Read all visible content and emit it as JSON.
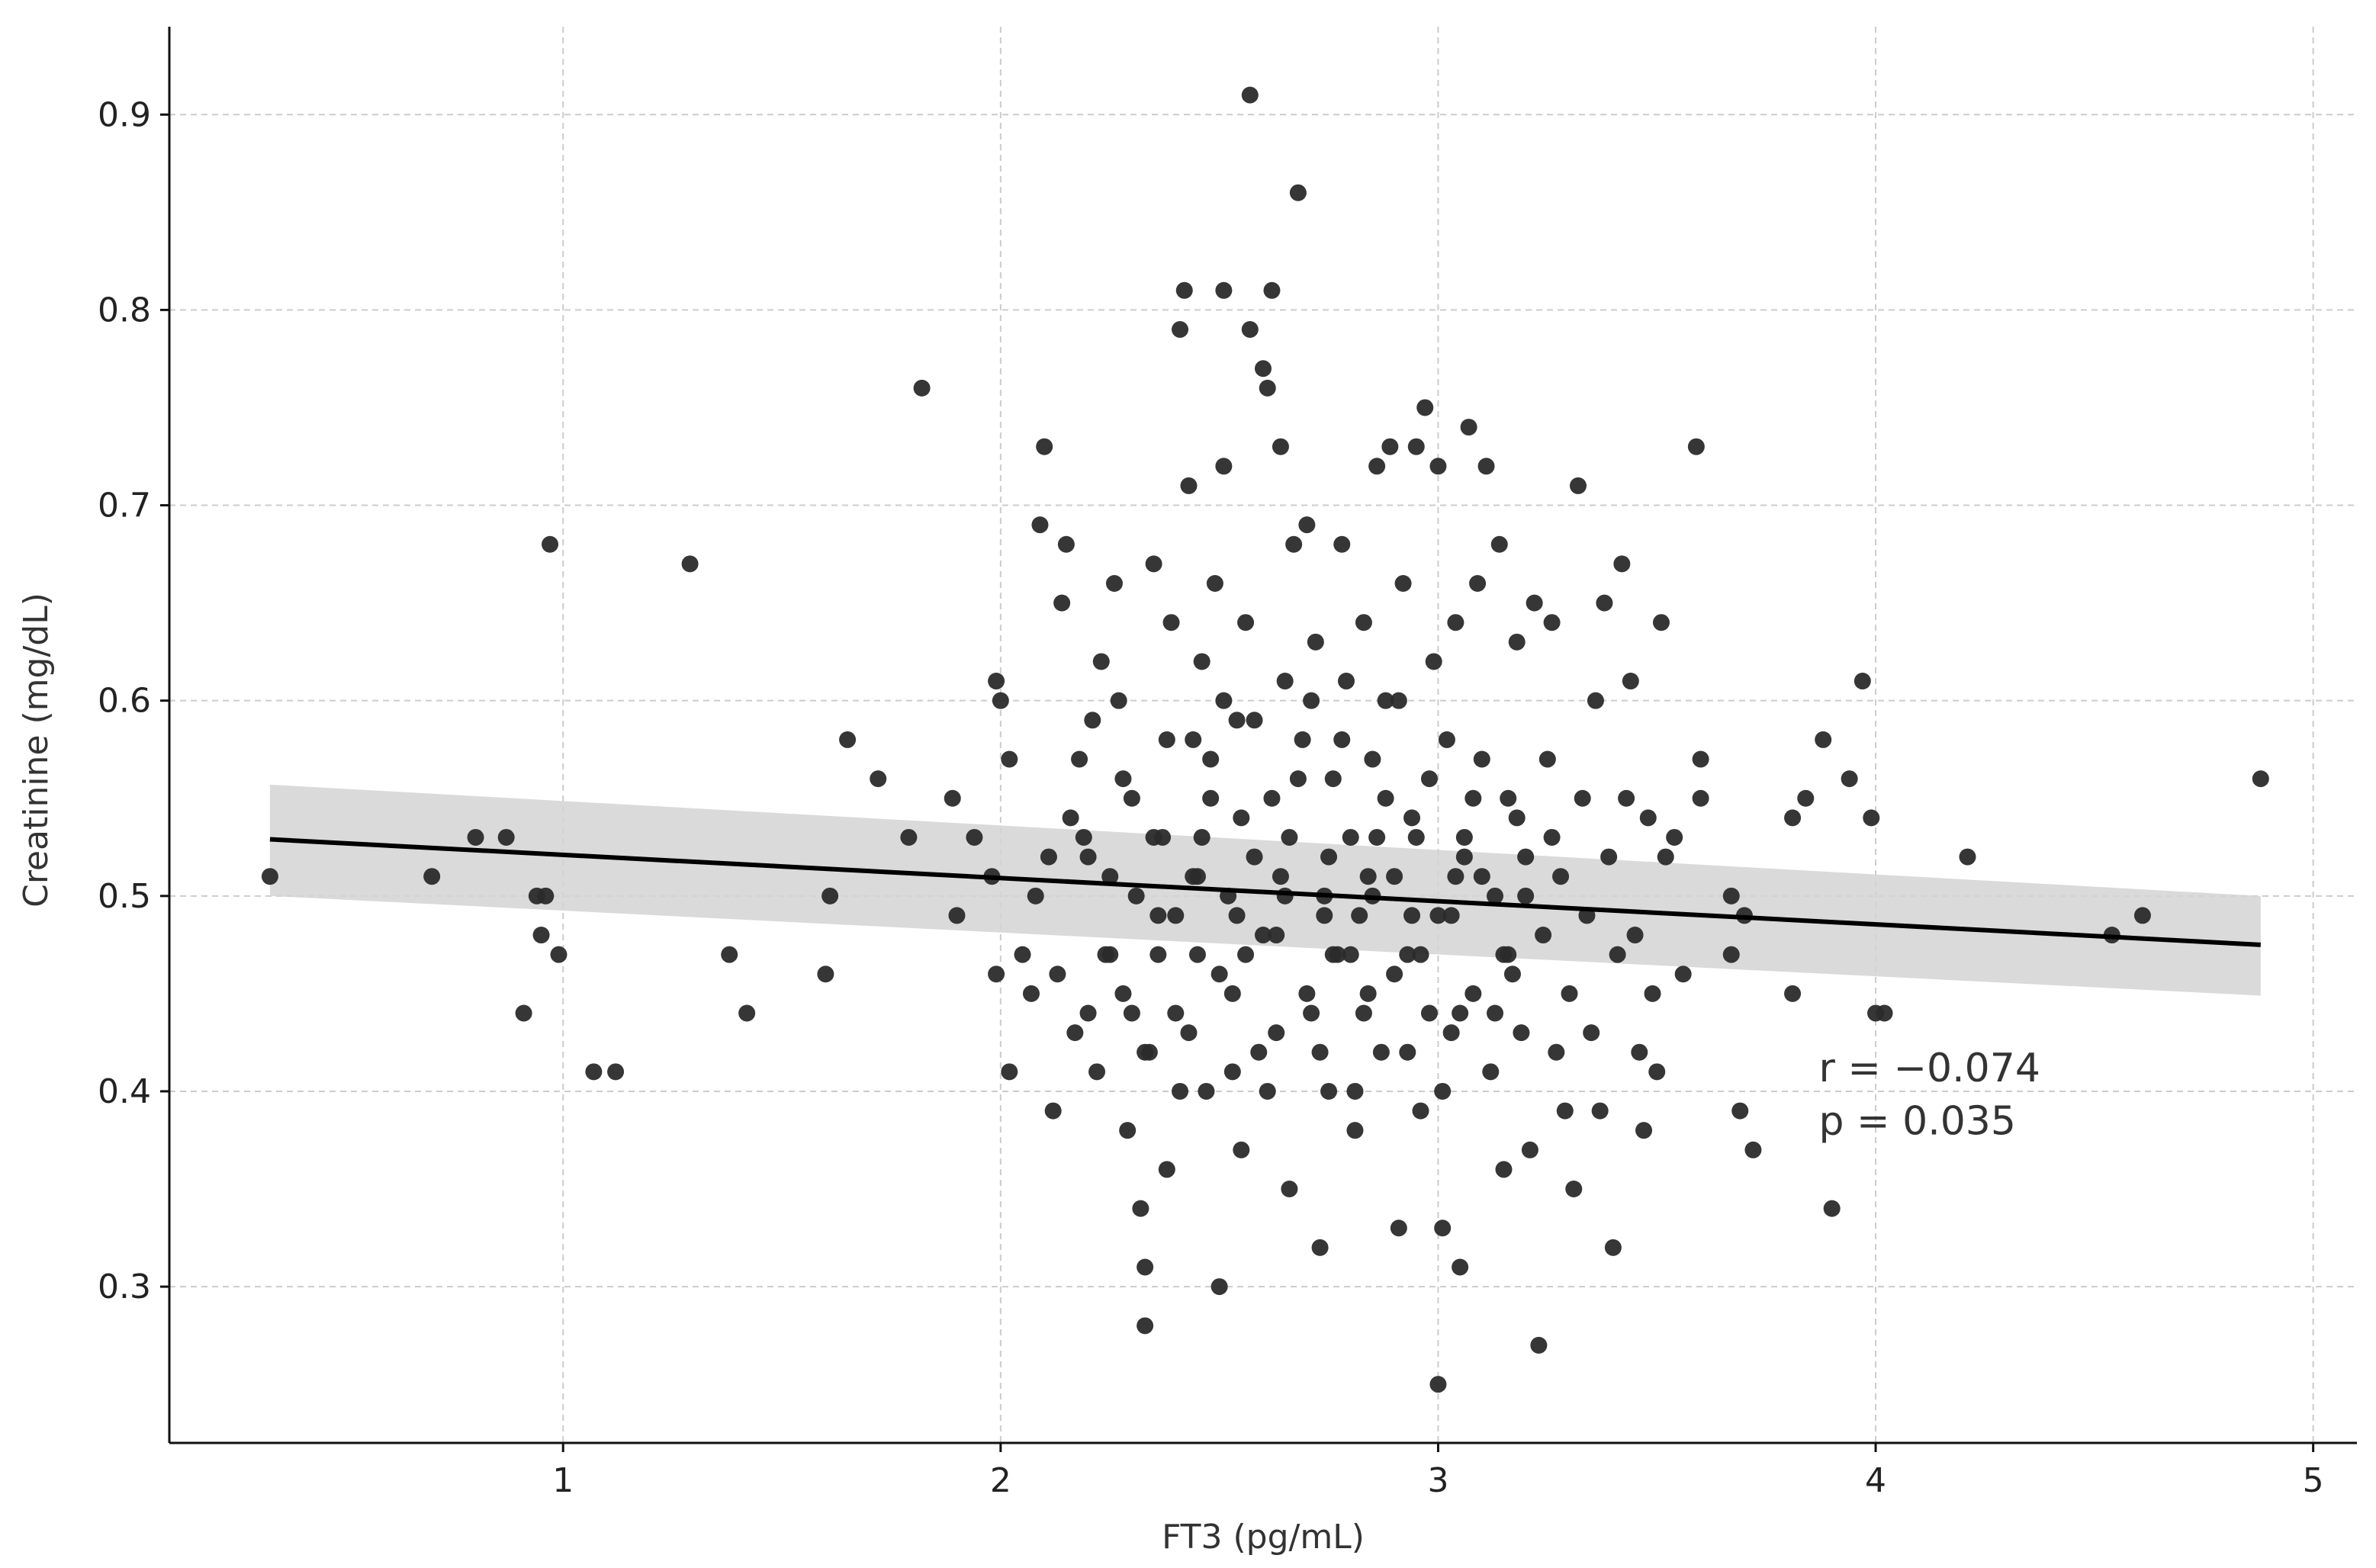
{
  "chart_data": {
    "type": "scatter",
    "title": "",
    "xlabel": "FT3 (pg/mL)",
    "ylabel": "Creatinine (mg/dL)",
    "xlim": [
      0.1,
      5.1
    ],
    "ylim": [
      0.22,
      0.945
    ],
    "xticks": [
      1,
      2,
      3,
      4,
      5
    ],
    "yticks": [
      0.3,
      0.4,
      0.5,
      0.6,
      0.7,
      0.8,
      0.9
    ],
    "grid": true,
    "point_color": "#2b2b2b",
    "line_color": "#000000",
    "band_color": "#d3d3d3",
    "annotations": [
      {
        "label": "r = −0.074",
        "x": 3.87,
        "y": 0.405
      },
      {
        "label": "p = 0.035",
        "x": 3.87,
        "y": 0.378
      }
    ],
    "regression": {
      "x": [
        0.33,
        4.88
      ],
      "y": [
        0.529,
        0.475
      ],
      "ci_upper": [
        0.557,
        0.5
      ],
      "ci_lower": [
        0.5,
        0.449
      ]
    },
    "points": [
      [
        0.33,
        0.51
      ],
      [
        0.7,
        0.51
      ],
      [
        0.8,
        0.53
      ],
      [
        0.87,
        0.53
      ],
      [
        0.91,
        0.44
      ],
      [
        0.94,
        0.5
      ],
      [
        0.96,
        0.5
      ],
      [
        0.95,
        0.48
      ],
      [
        0.97,
        0.68
      ],
      [
        0.99,
        0.47
      ],
      [
        1.07,
        0.41
      ],
      [
        1.12,
        0.41
      ],
      [
        1.29,
        0.67
      ],
      [
        1.38,
        0.47
      ],
      [
        1.42,
        0.44
      ],
      [
        1.6,
        0.46
      ],
      [
        1.61,
        0.5
      ],
      [
        1.65,
        0.58
      ],
      [
        1.72,
        0.56
      ],
      [
        1.79,
        0.53
      ],
      [
        1.82,
        0.76
      ],
      [
        1.89,
        0.55
      ],
      [
        1.9,
        0.49
      ],
      [
        1.94,
        0.53
      ],
      [
        1.98,
        0.51
      ],
      [
        1.99,
        0.61
      ],
      [
        2.0,
        0.6
      ],
      [
        2.02,
        0.57
      ],
      [
        2.02,
        0.41
      ],
      [
        1.99,
        0.46
      ],
      [
        2.05,
        0.47
      ],
      [
        2.07,
        0.45
      ],
      [
        2.08,
        0.5
      ],
      [
        2.09,
        0.69
      ],
      [
        2.1,
        0.73
      ],
      [
        2.11,
        0.52
      ],
      [
        2.12,
        0.39
      ],
      [
        2.13,
        0.46
      ],
      [
        2.14,
        0.65
      ],
      [
        2.15,
        0.68
      ],
      [
        2.16,
        0.54
      ],
      [
        2.17,
        0.43
      ],
      [
        2.18,
        0.57
      ],
      [
        2.19,
        0.53
      ],
      [
        2.2,
        0.44
      ],
      [
        2.21,
        0.59
      ],
      [
        2.22,
        0.41
      ],
      [
        2.23,
        0.62
      ],
      [
        2.24,
        0.47
      ],
      [
        2.25,
        0.51
      ],
      [
        2.26,
        0.66
      ],
      [
        2.27,
        0.6
      ],
      [
        2.28,
        0.45
      ],
      [
        2.29,
        0.38
      ],
      [
        2.3,
        0.55
      ],
      [
        2.31,
        0.5
      ],
      [
        2.32,
        0.34
      ],
      [
        2.33,
        0.28
      ],
      [
        2.33,
        0.31
      ],
      [
        2.34,
        0.42
      ],
      [
        2.35,
        0.67
      ],
      [
        2.36,
        0.49
      ],
      [
        2.37,
        0.53
      ],
      [
        2.38,
        0.36
      ],
      [
        2.39,
        0.64
      ],
      [
        2.4,
        0.44
      ],
      [
        2.41,
        0.79
      ],
      [
        2.42,
        0.81
      ],
      [
        2.43,
        0.71
      ],
      [
        2.44,
        0.58
      ],
      [
        2.45,
        0.47
      ],
      [
        2.46,
        0.62
      ],
      [
        2.47,
        0.4
      ],
      [
        2.48,
        0.55
      ],
      [
        2.49,
        0.66
      ],
      [
        2.5,
        0.3
      ],
      [
        2.51,
        0.81
      ],
      [
        2.51,
        0.72
      ],
      [
        2.52,
        0.5
      ],
      [
        2.53,
        0.45
      ],
      [
        2.54,
        0.59
      ],
      [
        2.55,
        0.37
      ],
      [
        2.56,
        0.64
      ],
      [
        2.57,
        0.79
      ],
      [
        2.57,
        0.91
      ],
      [
        2.58,
        0.52
      ],
      [
        2.59,
        0.42
      ],
      [
        2.6,
        0.77
      ],
      [
        2.61,
        0.76
      ],
      [
        2.62,
        0.81
      ],
      [
        2.62,
        0.55
      ],
      [
        2.63,
        0.48
      ],
      [
        2.64,
        0.73
      ],
      [
        2.65,
        0.61
      ],
      [
        2.66,
        0.35
      ],
      [
        2.67,
        0.68
      ],
      [
        2.68,
        0.86
      ],
      [
        2.69,
        0.58
      ],
      [
        2.7,
        0.69
      ],
      [
        2.71,
        0.44
      ],
      [
        2.72,
        0.63
      ],
      [
        2.73,
        0.32
      ],
      [
        2.74,
        0.5
      ],
      [
        2.75,
        0.4
      ],
      [
        2.76,
        0.56
      ],
      [
        2.77,
        0.47
      ],
      [
        2.78,
        0.68
      ],
      [
        2.79,
        0.61
      ],
      [
        2.8,
        0.53
      ],
      [
        2.81,
        0.38
      ],
      [
        2.82,
        0.49
      ],
      [
        2.83,
        0.64
      ],
      [
        2.84,
        0.45
      ],
      [
        2.85,
        0.57
      ],
      [
        2.86,
        0.72
      ],
      [
        2.87,
        0.42
      ],
      [
        2.88,
        0.6
      ],
      [
        2.89,
        0.73
      ],
      [
        2.9,
        0.51
      ],
      [
        2.91,
        0.33
      ],
      [
        2.92,
        0.66
      ],
      [
        2.93,
        0.47
      ],
      [
        2.94,
        0.54
      ],
      [
        2.95,
        0.73
      ],
      [
        2.96,
        0.39
      ],
      [
        2.97,
        0.75
      ],
      [
        2.98,
        0.44
      ],
      [
        2.99,
        0.62
      ],
      [
        3.0,
        0.72
      ],
      [
        3.01,
        0.33
      ],
      [
        3.0,
        0.25
      ],
      [
        3.02,
        0.58
      ],
      [
        3.03,
        0.49
      ],
      [
        3.04,
        0.64
      ],
      [
        3.05,
        0.31
      ],
      [
        3.06,
        0.52
      ],
      [
        3.07,
        0.74
      ],
      [
        3.08,
        0.45
      ],
      [
        3.09,
        0.66
      ],
      [
        3.1,
        0.57
      ],
      [
        3.11,
        0.72
      ],
      [
        3.12,
        0.41
      ],
      [
        3.13,
        0.5
      ],
      [
        3.14,
        0.68
      ],
      [
        3.15,
        0.36
      ],
      [
        3.16,
        0.55
      ],
      [
        3.17,
        0.46
      ],
      [
        3.18,
        0.63
      ],
      [
        3.19,
        0.43
      ],
      [
        3.2,
        0.52
      ],
      [
        3.21,
        0.37
      ],
      [
        3.22,
        0.65
      ],
      [
        3.23,
        0.27
      ],
      [
        3.24,
        0.48
      ],
      [
        3.25,
        0.57
      ],
      [
        3.26,
        0.64
      ],
      [
        3.27,
        0.42
      ],
      [
        3.28,
        0.51
      ],
      [
        3.29,
        0.39
      ],
      [
        3.3,
        0.45
      ],
      [
        3.31,
        0.35
      ],
      [
        3.32,
        0.71
      ],
      [
        3.33,
        0.55
      ],
      [
        3.34,
        0.49
      ],
      [
        3.35,
        0.43
      ],
      [
        3.36,
        0.6
      ],
      [
        3.37,
        0.39
      ],
      [
        3.38,
        0.65
      ],
      [
        3.39,
        0.52
      ],
      [
        3.4,
        0.32
      ],
      [
        3.41,
        0.47
      ],
      [
        3.42,
        0.67
      ],
      [
        3.43,
        0.55
      ],
      [
        3.44,
        0.61
      ],
      [
        3.45,
        0.48
      ],
      [
        3.46,
        0.42
      ],
      [
        3.47,
        0.38
      ],
      [
        3.48,
        0.54
      ],
      [
        3.49,
        0.45
      ],
      [
        3.5,
        0.41
      ],
      [
        3.51,
        0.64
      ],
      [
        3.52,
        0.52
      ],
      [
        3.54,
        0.53
      ],
      [
        3.56,
        0.46
      ],
      [
        3.59,
        0.73
      ],
      [
        3.6,
        0.57
      ],
      [
        3.6,
        0.55
      ],
      [
        3.67,
        0.5
      ],
      [
        3.67,
        0.47
      ],
      [
        3.69,
        0.39
      ],
      [
        3.7,
        0.49
      ],
      [
        3.72,
        0.37
      ],
      [
        3.81,
        0.45
      ],
      [
        3.81,
        0.54
      ],
      [
        3.84,
        0.55
      ],
      [
        3.88,
        0.58
      ],
      [
        3.9,
        0.34
      ],
      [
        3.94,
        0.56
      ],
      [
        3.97,
        0.61
      ],
      [
        3.99,
        0.54
      ],
      [
        4.0,
        0.44
      ],
      [
        4.02,
        0.44
      ],
      [
        4.21,
        0.52
      ],
      [
        4.54,
        0.48
      ],
      [
        4.61,
        0.49
      ],
      [
        4.88,
        0.56
      ],
      [
        2.2,
        0.52
      ],
      [
        2.25,
        0.47
      ],
      [
        2.3,
        0.44
      ],
      [
        2.35,
        0.53
      ],
      [
        2.4,
        0.49
      ],
      [
        2.45,
        0.51
      ],
      [
        2.5,
        0.46
      ],
      [
        2.55,
        0.54
      ],
      [
        2.6,
        0.48
      ],
      [
        2.65,
        0.5
      ],
      [
        2.7,
        0.45
      ],
      [
        2.75,
        0.52
      ],
      [
        2.8,
        0.47
      ],
      [
        2.85,
        0.5
      ],
      [
        2.9,
        0.46
      ],
      [
        2.95,
        0.53
      ],
      [
        3.0,
        0.49
      ],
      [
        3.05,
        0.44
      ],
      [
        3.1,
        0.51
      ],
      [
        3.15,
        0.47
      ],
      [
        3.2,
        0.5
      ],
      [
        2.28,
        0.56
      ],
      [
        2.33,
        0.42
      ],
      [
        2.38,
        0.58
      ],
      [
        2.43,
        0.43
      ],
      [
        2.48,
        0.57
      ],
      [
        2.53,
        0.41
      ],
      [
        2.58,
        0.59
      ],
      [
        2.63,
        0.43
      ],
      [
        2.68,
        0.56
      ],
      [
        2.73,
        0.42
      ],
      [
        2.78,
        0.58
      ],
      [
        2.83,
        0.44
      ],
      [
        2.88,
        0.55
      ],
      [
        2.93,
        0.42
      ],
      [
        2.98,
        0.56
      ],
      [
        3.03,
        0.43
      ],
      [
        3.08,
        0.55
      ],
      [
        3.13,
        0.44
      ],
      [
        3.18,
        0.54
      ],
      [
        2.36,
        0.47
      ],
      [
        2.46,
        0.53
      ],
      [
        2.56,
        0.47
      ],
      [
        2.66,
        0.53
      ],
      [
        2.76,
        0.47
      ],
      [
        2.86,
        0.53
      ],
      [
        2.96,
        0.47
      ],
      [
        3.06,
        0.53
      ],
      [
        3.16,
        0.47
      ],
      [
        3.26,
        0.53
      ],
      [
        2.41,
        0.4
      ],
      [
        2.51,
        0.6
      ],
      [
        2.61,
        0.4
      ],
      [
        2.71,
        0.6
      ],
      [
        2.81,
        0.4
      ],
      [
        2.91,
        0.6
      ],
      [
        3.01,
        0.4
      ],
      [
        2.44,
        0.51
      ],
      [
        2.54,
        0.49
      ],
      [
        2.64,
        0.51
      ],
      [
        2.74,
        0.49
      ],
      [
        2.84,
        0.51
      ],
      [
        2.94,
        0.49
      ],
      [
        3.04,
        0.51
      ]
    ]
  }
}
